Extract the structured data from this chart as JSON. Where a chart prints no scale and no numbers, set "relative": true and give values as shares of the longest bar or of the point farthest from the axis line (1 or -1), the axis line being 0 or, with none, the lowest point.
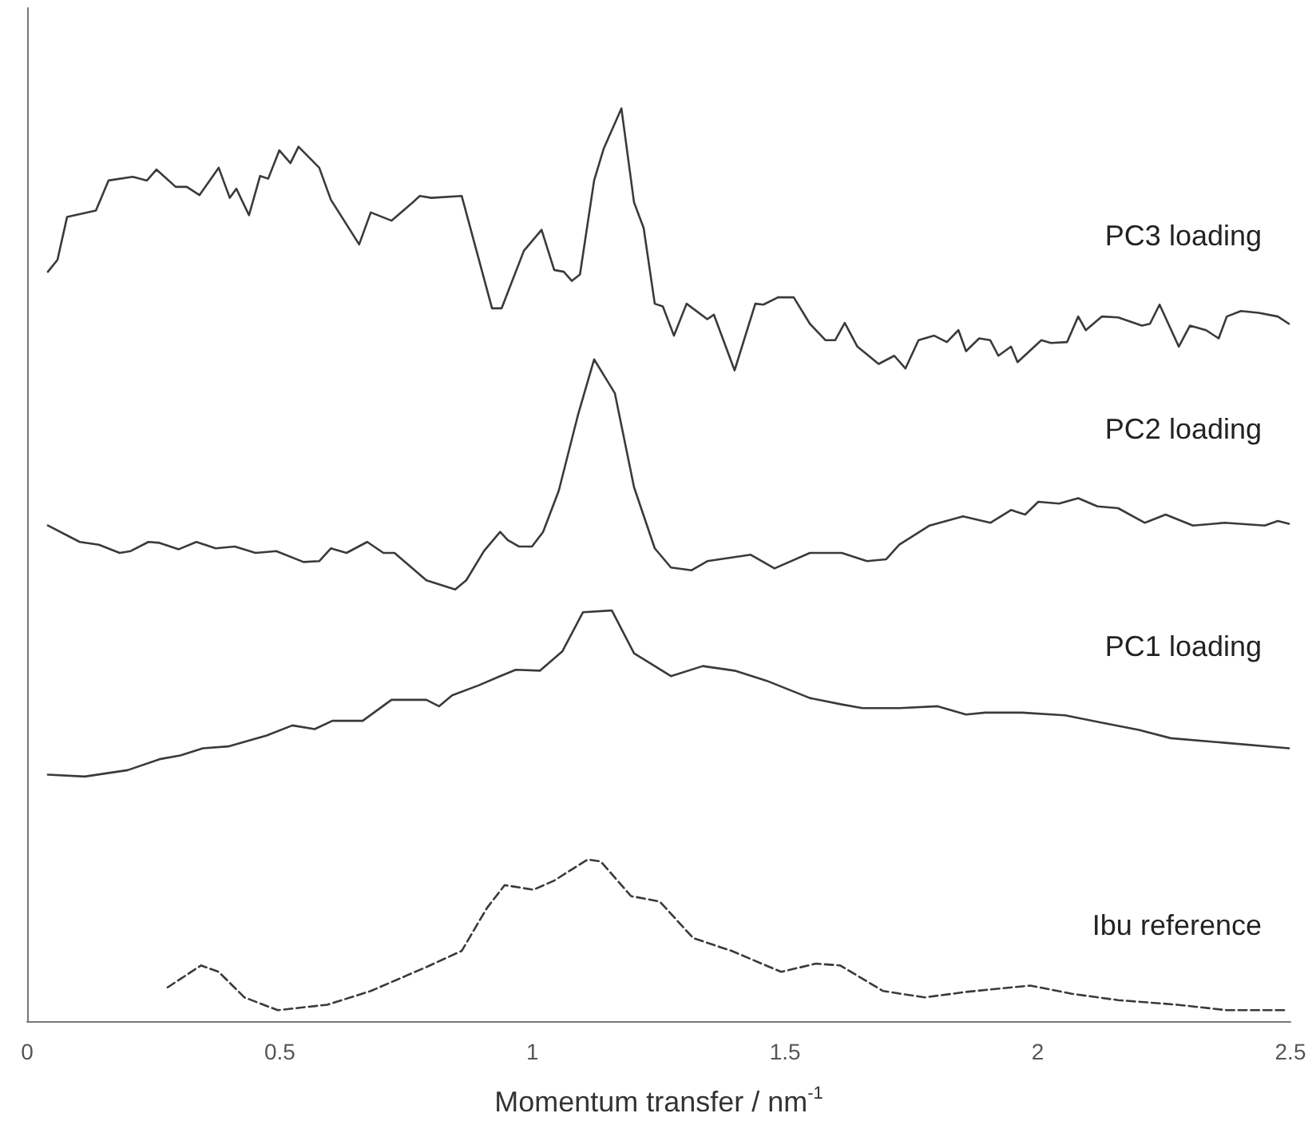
{
  "chart_data": {
    "type": "line",
    "relative": true,
    "xlabel": "Momentum transfer / nm$^{-1}$",
    "xlim": [
      0,
      2.5
    ],
    "xticks": [
      0,
      0.5,
      1,
      1.5,
      2,
      2.5
    ],
    "tick_labels": "x",
    "grid": false,
    "legend": false,
    "marker": "none",
    "series": [
      {
        "name": "PC3 loading",
        "color": "#3a3a3a",
        "line_style": "solid",
        "x": [
          0.041,
          0.06,
          0.079,
          0.136,
          0.161,
          0.209,
          0.237,
          0.256,
          0.294,
          0.316,
          0.341,
          0.379,
          0.401,
          0.414,
          0.439,
          0.461,
          0.477,
          0.499,
          0.521,
          0.537,
          0.578,
          0.601,
          0.657,
          0.68,
          0.721,
          0.759,
          0.777,
          0.8,
          0.86,
          0.92,
          0.939,
          0.983,
          1.018,
          1.043,
          1.062,
          1.078,
          1.094,
          1.122,
          1.141,
          1.176,
          1.201,
          1.22,
          1.242,
          1.258,
          1.28,
          1.305,
          1.346,
          1.359,
          1.4,
          1.441,
          1.457,
          1.486,
          1.517,
          1.549,
          1.58,
          1.599,
          1.618,
          1.643,
          1.685,
          1.716,
          1.738,
          1.764,
          1.795,
          1.82,
          1.843,
          1.858,
          1.884,
          1.906,
          1.922,
          1.947,
          1.96,
          2.007,
          2.026,
          2.058,
          2.08,
          2.095,
          2.127,
          2.159,
          2.206,
          2.222,
          2.241,
          2.279,
          2.301,
          2.333,
          2.358,
          2.374,
          2.402,
          2.437,
          2.475,
          2.497
        ],
        "values": [
          0.821,
          0.834,
          0.881,
          0.888,
          0.921,
          0.925,
          0.921,
          0.933,
          0.914,
          0.914,
          0.905,
          0.935,
          0.902,
          0.912,
          0.883,
          0.926,
          0.923,
          0.954,
          0.94,
          0.958,
          0.935,
          0.9,
          0.851,
          0.886,
          0.877,
          0.895,
          0.904,
          0.902,
          0.904,
          0.781,
          0.781,
          0.844,
          0.867,
          0.823,
          0.821,
          0.811,
          0.818,
          0.921,
          0.956,
          1.0,
          0.897,
          0.869,
          0.786,
          0.783,
          0.751,
          0.786,
          0.769,
          0.774,
          0.713,
          0.786,
          0.785,
          0.793,
          0.793,
          0.764,
          0.746,
          0.746,
          0.765,
          0.739,
          0.72,
          0.729,
          0.715,
          0.746,
          0.751,
          0.744,
          0.757,
          0.734,
          0.748,
          0.746,
          0.729,
          0.739,
          0.722,
          0.746,
          0.743,
          0.744,
          0.772,
          0.757,
          0.772,
          0.771,
          0.762,
          0.764,
          0.785,
          0.739,
          0.762,
          0.757,
          0.748,
          0.772,
          0.778,
          0.776,
          0.772,
          0.764
        ]
      },
      {
        "name": "PC2 loading",
        "color": "#3a3a3a",
        "line_style": "solid",
        "x": [
          0.041,
          0.104,
          0.142,
          0.183,
          0.205,
          0.24,
          0.262,
          0.3,
          0.335,
          0.373,
          0.411,
          0.452,
          0.493,
          0.547,
          0.578,
          0.601,
          0.632,
          0.673,
          0.705,
          0.727,
          0.79,
          0.847,
          0.869,
          0.904,
          0.936,
          0.951,
          0.973,
          0.999,
          1.021,
          1.052,
          1.09,
          1.122,
          1.163,
          1.201,
          1.242,
          1.274,
          1.315,
          1.346,
          1.432,
          1.479,
          1.549,
          1.612,
          1.662,
          1.7,
          1.726,
          1.786,
          1.852,
          1.906,
          1.947,
          1.975,
          2.001,
          2.042,
          2.08,
          2.118,
          2.159,
          2.212,
          2.253,
          2.307,
          2.37,
          2.449,
          2.475,
          2.497
        ],
        "values": [
          0.543,
          0.525,
          0.522,
          0.513,
          0.515,
          0.525,
          0.524,
          0.517,
          0.525,
          0.518,
          0.52,
          0.513,
          0.515,
          0.503,
          0.504,
          0.518,
          0.513,
          0.525,
          0.513,
          0.513,
          0.483,
          0.473,
          0.483,
          0.515,
          0.536,
          0.527,
          0.52,
          0.52,
          0.536,
          0.581,
          0.664,
          0.725,
          0.688,
          0.585,
          0.518,
          0.497,
          0.494,
          0.504,
          0.511,
          0.496,
          0.513,
          0.513,
          0.504,
          0.506,
          0.522,
          0.543,
          0.553,
          0.546,
          0.56,
          0.555,
          0.569,
          0.567,
          0.573,
          0.564,
          0.562,
          0.546,
          0.555,
          0.543,
          0.546,
          0.543,
          0.548,
          0.545
        ]
      },
      {
        "name": "PC1 loading",
        "color": "#3a3a3a",
        "line_style": "solid",
        "x": [
          0.041,
          0.114,
          0.199,
          0.262,
          0.303,
          0.348,
          0.398,
          0.474,
          0.525,
          0.569,
          0.604,
          0.664,
          0.721,
          0.79,
          0.815,
          0.841,
          0.894,
          0.936,
          0.967,
          1.015,
          1.059,
          1.1,
          1.157,
          1.201,
          1.274,
          1.337,
          1.4,
          1.463,
          1.549,
          1.612,
          1.653,
          1.726,
          1.802,
          1.858,
          1.896,
          1.969,
          2.054,
          2.127,
          2.2,
          2.263,
          2.37,
          2.497
        ],
        "values": [
          0.27,
          0.268,
          0.275,
          0.287,
          0.291,
          0.299,
          0.301,
          0.313,
          0.324,
          0.32,
          0.329,
          0.329,
          0.352,
          0.352,
          0.345,
          0.357,
          0.368,
          0.378,
          0.385,
          0.384,
          0.405,
          0.448,
          0.45,
          0.403,
          0.378,
          0.389,
          0.384,
          0.373,
          0.354,
          0.347,
          0.343,
          0.343,
          0.345,
          0.336,
          0.338,
          0.338,
          0.335,
          0.327,
          0.319,
          0.31,
          0.305,
          0.299
        ]
      },
      {
        "name": "Ibu reference",
        "color": "#3a3a3a",
        "line_style": "dashed",
        "x": [
          0.278,
          0.344,
          0.379,
          0.43,
          0.496,
          0.594,
          0.68,
          0.793,
          0.86,
          0.91,
          0.945,
          1.002,
          1.043,
          1.109,
          1.135,
          1.195,
          1.252,
          1.318,
          1.394,
          1.492,
          1.561,
          1.609,
          1.694,
          1.776,
          1.858,
          1.985,
          2.067,
          2.159,
          2.276,
          2.374,
          2.49
        ],
        "values": [
          0.037,
          0.061,
          0.054,
          0.026,
          0.012,
          0.018,
          0.033,
          0.06,
          0.077,
          0.124,
          0.149,
          0.144,
          0.154,
          0.177,
          0.175,
          0.137,
          0.131,
          0.091,
          0.077,
          0.054,
          0.063,
          0.061,
          0.033,
          0.026,
          0.032,
          0.039,
          0.03,
          0.023,
          0.018,
          0.012,
          0.012
        ]
      }
    ]
  }
}
